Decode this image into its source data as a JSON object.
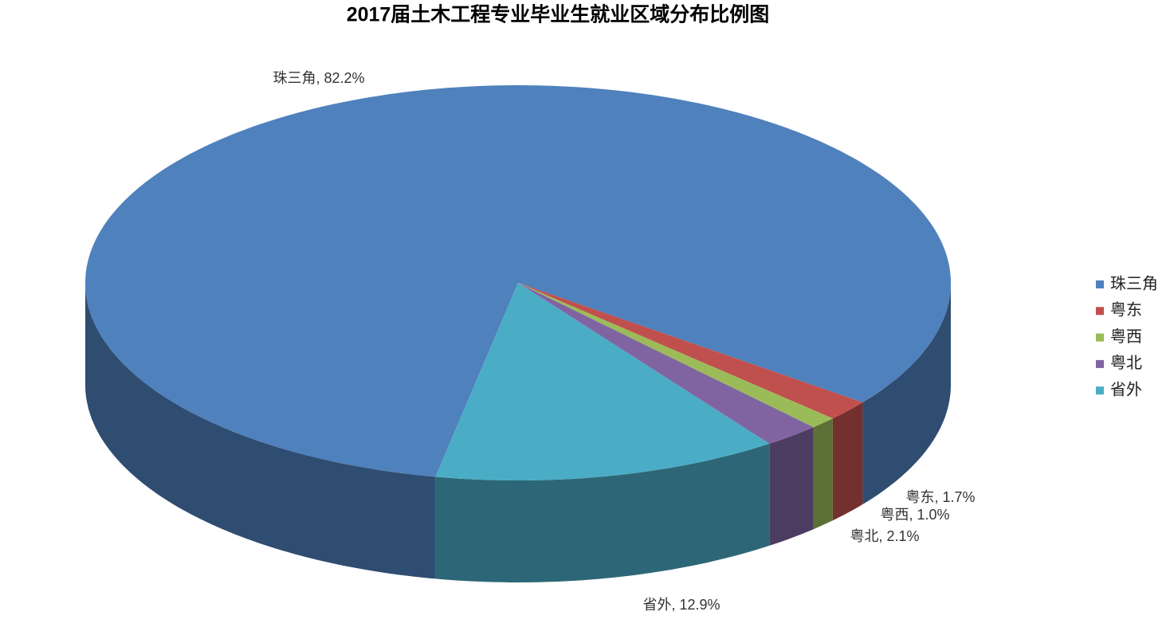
{
  "chart_data": {
    "type": "pie",
    "title": "2017届土木工程专业毕业生就业区域分布比例图",
    "categories": [
      "珠三角",
      "粤东",
      "粤西",
      "粤北",
      "省外"
    ],
    "values": [
      82.2,
      1.7,
      1.0,
      2.1,
      12.9
    ],
    "value_labels": [
      "珠三角, 82.2%",
      "粤东, 1.7%",
      "粤西, 1.0%",
      "粤北, 2.1%",
      "省外, 12.9%"
    ],
    "colors": [
      "#4f81bd",
      "#c0504d",
      "#9bbb59",
      "#8064a2",
      "#4bacc6"
    ],
    "legend": "right",
    "three_d": true
  }
}
